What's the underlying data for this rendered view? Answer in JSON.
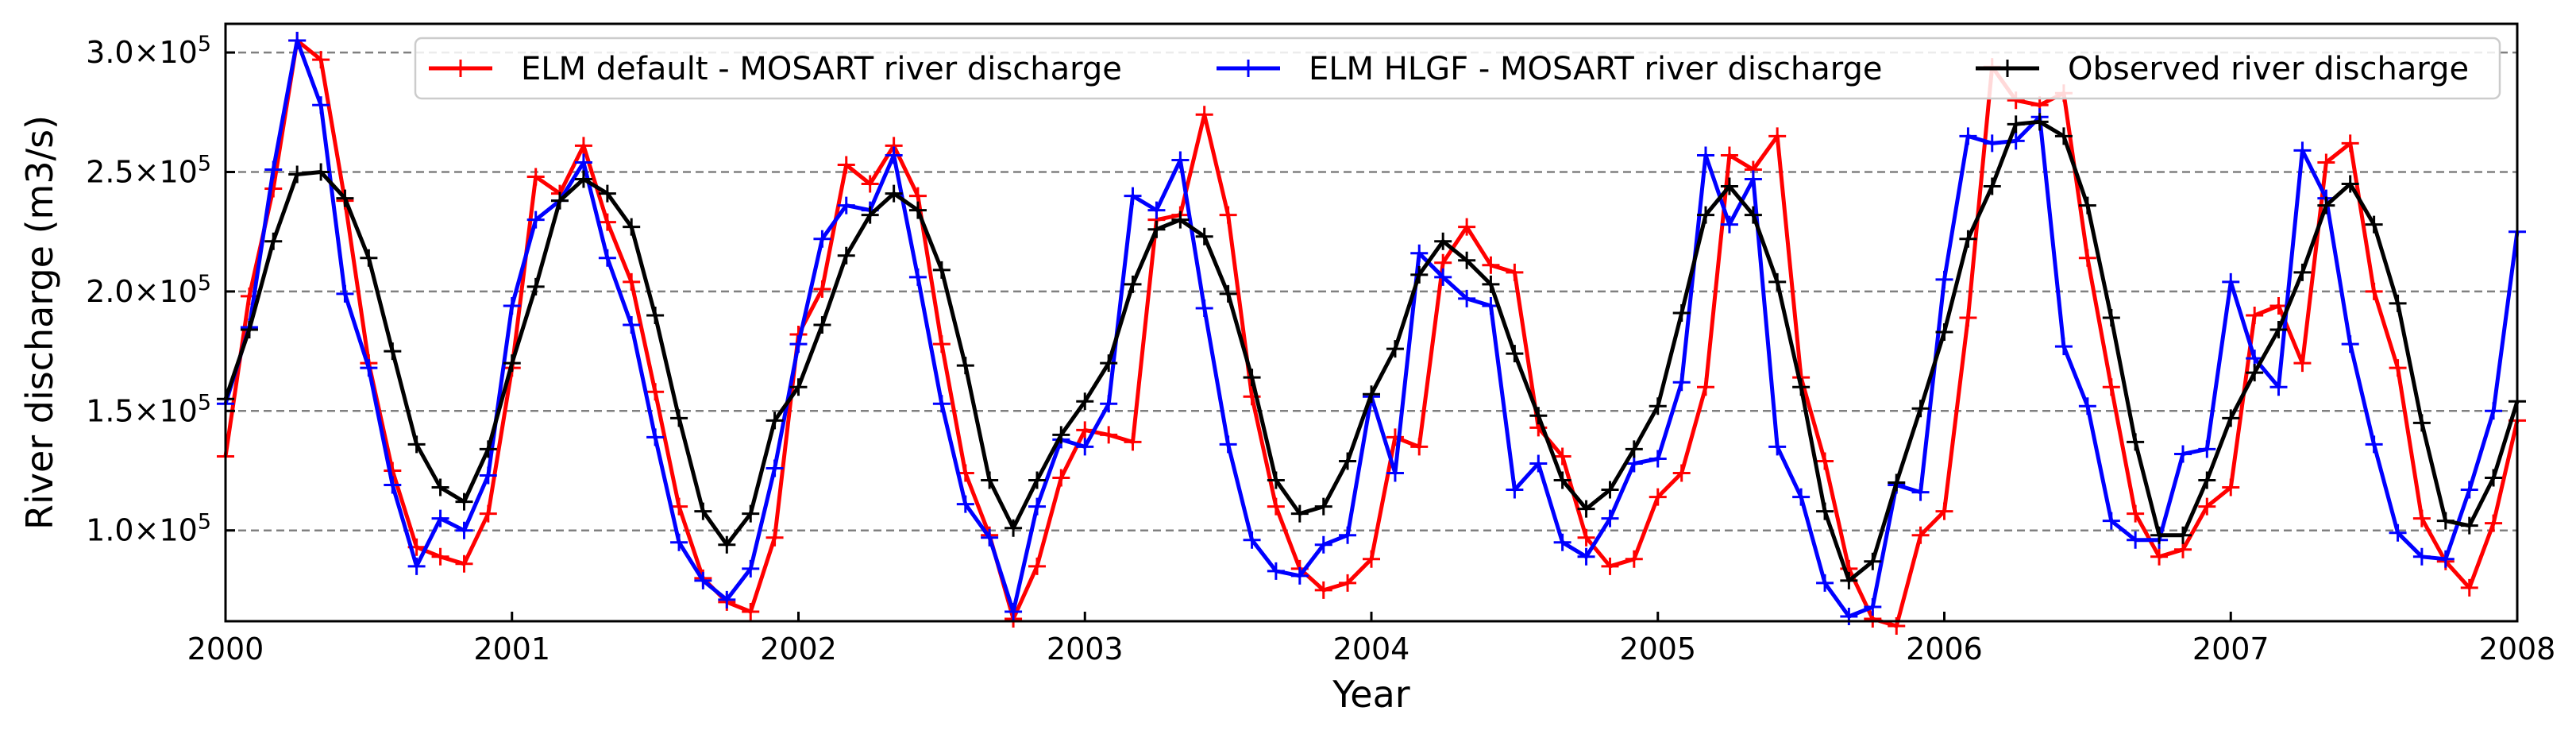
{
  "chart_data": {
    "type": "line",
    "title": "",
    "xlabel": "Year",
    "ylabel": "River discharge (m3/s)",
    "xlim": [
      2000.0,
      2008.0
    ],
    "ylim": [
      62000,
      312000
    ],
    "x_ticks": [
      2000,
      2001,
      2002,
      2003,
      2004,
      2005,
      2006,
      2007,
      2008
    ],
    "x_tick_labels": [
      "2000",
      "2001",
      "2002",
      "2003",
      "2004",
      "2005",
      "2006",
      "2007",
      "2008"
    ],
    "y_ticks": [
      100000,
      150000,
      200000,
      250000,
      300000
    ],
    "y_tick_labels": [
      {
        "mant": "1.0",
        "exp": "5"
      },
      {
        "mant": "1.5",
        "exp": "5"
      },
      {
        "mant": "2.0",
        "exp": "5"
      },
      {
        "mant": "2.5",
        "exp": "5"
      },
      {
        "mant": "3.0",
        "exp": "5"
      }
    ],
    "grid": "horizontal dashed",
    "legend_position": "top-right",
    "marker": "plus",
    "series": [
      {
        "name": "ELM default - MOSART river discharge",
        "color": "#ff0000",
        "x": [
          2000.0,
          2000.083,
          2000.167,
          2000.25,
          2000.333,
          2000.417,
          2000.5,
          2000.583,
          2000.667,
          2000.75,
          2000.833,
          2000.917,
          2001.0,
          2001.083,
          2001.167,
          2001.25,
          2001.333,
          2001.417,
          2001.5,
          2001.583,
          2001.667,
          2001.75,
          2001.833,
          2001.917,
          2002.0,
          2002.083,
          2002.167,
          2002.25,
          2002.333,
          2002.417,
          2002.5,
          2002.583,
          2002.667,
          2002.75,
          2002.833,
          2002.917,
          2003.0,
          2003.083,
          2003.167,
          2003.25,
          2003.333,
          2003.417,
          2003.5,
          2003.583,
          2003.667,
          2003.75,
          2003.833,
          2003.917,
          2004.0,
          2004.083,
          2004.167,
          2004.25,
          2004.333,
          2004.417,
          2004.5,
          2004.583,
          2004.667,
          2004.75,
          2004.833,
          2004.917,
          2005.0,
          2005.083,
          2005.167,
          2005.25,
          2005.333,
          2005.417,
          2005.5,
          2005.583,
          2005.667,
          2005.75,
          2005.833,
          2005.917,
          2006.0,
          2006.083,
          2006.167,
          2006.25,
          2006.333,
          2006.417,
          2006.5,
          2006.583,
          2006.667,
          2006.75,
          2006.833,
          2006.917,
          2007.0,
          2007.083,
          2007.167,
          2007.25,
          2007.333,
          2007.417,
          2007.5,
          2007.583,
          2007.667,
          2007.75,
          2007.833,
          2007.917,
          2008.0
        ],
        "values": [
          131000,
          198000,
          243000,
          305000,
          297000,
          238000,
          170000,
          125000,
          93000,
          89000,
          86000,
          107000,
          168000,
          248000,
          241000,
          261000,
          229000,
          204000,
          158000,
          110000,
          80000,
          70000,
          66000,
          97000,
          182000,
          201000,
          253000,
          245000,
          261000,
          240000,
          178000,
          124000,
          98000,
          63000,
          85000,
          122000,
          142000,
          140000,
          137000,
          230000,
          232000,
          274000,
          232000,
          156000,
          110000,
          84000,
          75000,
          78000,
          88000,
          139000,
          135000,
          212000,
          227000,
          211000,
          208000,
          143000,
          131000,
          97000,
          85000,
          88000,
          114000,
          124000,
          160000,
          257000,
          251000,
          265000,
          164000,
          129000,
          84000,
          63000,
          60000,
          98000,
          108000,
          189000,
          294000,
          280000,
          278000,
          283000,
          214000,
          160000,
          107000,
          89000,
          92000,
          110000,
          118000,
          190000,
          194000,
          170000,
          254000,
          262000,
          200000,
          168000,
          105000,
          87000,
          76000,
          103000,
          146000
        ]
      },
      {
        "name": "ELM HLGF - MOSART river discharge",
        "color": "#0000ff",
        "x": [
          2000.0,
          2000.083,
          2000.167,
          2000.25,
          2000.333,
          2000.417,
          2000.5,
          2000.583,
          2000.667,
          2000.75,
          2000.833,
          2000.917,
          2001.0,
          2001.083,
          2001.167,
          2001.25,
          2001.333,
          2001.417,
          2001.5,
          2001.583,
          2001.667,
          2001.75,
          2001.833,
          2001.917,
          2002.0,
          2002.083,
          2002.167,
          2002.25,
          2002.333,
          2002.417,
          2002.5,
          2002.583,
          2002.667,
          2002.75,
          2002.833,
          2002.917,
          2003.0,
          2003.083,
          2003.167,
          2003.25,
          2003.333,
          2003.417,
          2003.5,
          2003.583,
          2003.667,
          2003.75,
          2003.833,
          2003.917,
          2004.0,
          2004.083,
          2004.167,
          2004.25,
          2004.333,
          2004.417,
          2004.5,
          2004.583,
          2004.667,
          2004.75,
          2004.833,
          2004.917,
          2005.0,
          2005.083,
          2005.167,
          2005.25,
          2005.333,
          2005.417,
          2005.5,
          2005.583,
          2005.667,
          2005.75,
          2005.833,
          2005.917,
          2006.0,
          2006.083,
          2006.167,
          2006.25,
          2006.333,
          2006.417,
          2006.5,
          2006.583,
          2006.667,
          2006.75,
          2006.833,
          2006.917,
          2007.0,
          2007.083,
          2007.167,
          2007.25,
          2007.333,
          2007.417,
          2007.5,
          2007.583,
          2007.667,
          2007.75,
          2007.833,
          2007.917,
          2008.0
        ],
        "values": [
          153000,
          185000,
          251000,
          305000,
          278000,
          199000,
          168000,
          119000,
          85000,
          105000,
          100000,
          123000,
          194000,
          230000,
          238000,
          254000,
          214000,
          186000,
          139000,
          95000,
          79000,
          71000,
          84000,
          126000,
          178000,
          222000,
          236000,
          234000,
          257000,
          206000,
          153000,
          111000,
          97000,
          66000,
          110000,
          138000,
          135000,
          153000,
          240000,
          234000,
          255000,
          193000,
          136000,
          96000,
          83000,
          81000,
          94000,
          98000,
          156000,
          124000,
          216000,
          206000,
          197000,
          194000,
          117000,
          128000,
          95000,
          89000,
          105000,
          128000,
          130000,
          162000,
          257000,
          228000,
          247000,
          135000,
          114000,
          78000,
          64000,
          68000,
          119000,
          116000,
          205000,
          265000,
          262000,
          263000,
          273000,
          177000,
          152000,
          104000,
          96000,
          96000,
          132000,
          134000,
          204000,
          172000,
          160000,
          259000,
          239000,
          178000,
          136000,
          99000,
          89000,
          88000,
          117000,
          150000,
          225000
        ]
      },
      {
        "name": "Observed river discharge",
        "color": "#000000",
        "x": [
          2000.0,
          2000.083,
          2000.167,
          2000.25,
          2000.333,
          2000.417,
          2000.5,
          2000.583,
          2000.667,
          2000.75,
          2000.833,
          2000.917,
          2001.0,
          2001.083,
          2001.167,
          2001.25,
          2001.333,
          2001.417,
          2001.5,
          2001.583,
          2001.667,
          2001.75,
          2001.833,
          2001.917,
          2002.0,
          2002.083,
          2002.167,
          2002.25,
          2002.333,
          2002.417,
          2002.5,
          2002.583,
          2002.667,
          2002.75,
          2002.833,
          2002.917,
          2003.0,
          2003.083,
          2003.167,
          2003.25,
          2003.333,
          2003.417,
          2003.5,
          2003.583,
          2003.667,
          2003.75,
          2003.833,
          2003.917,
          2004.0,
          2004.083,
          2004.167,
          2004.25,
          2004.333,
          2004.417,
          2004.5,
          2004.583,
          2004.667,
          2004.75,
          2004.833,
          2004.917,
          2005.0,
          2005.083,
          2005.167,
          2005.25,
          2005.333,
          2005.417,
          2005.5,
          2005.583,
          2005.667,
          2005.75,
          2005.833,
          2005.917,
          2006.0,
          2006.083,
          2006.167,
          2006.25,
          2006.333,
          2006.417,
          2006.5,
          2006.583,
          2006.667,
          2006.75,
          2006.833,
          2006.917,
          2007.0,
          2007.083,
          2007.167,
          2007.25,
          2007.333,
          2007.417,
          2007.5,
          2007.583,
          2007.667,
          2007.75,
          2007.833,
          2007.917,
          2008.0
        ],
        "values": [
          155000,
          184000,
          221000,
          249000,
          250000,
          239000,
          214000,
          175000,
          136000,
          118000,
          112000,
          134000,
          170000,
          202000,
          238000,
          247000,
          241000,
          227000,
          190000,
          147000,
          108000,
          94000,
          107000,
          146000,
          160000,
          186000,
          215000,
          232000,
          241000,
          234000,
          209000,
          169000,
          121000,
          101000,
          121000,
          140000,
          154000,
          170000,
          203000,
          226000,
          230000,
          223000,
          199000,
          164000,
          121000,
          107000,
          110000,
          129000,
          157000,
          176000,
          207000,
          221000,
          213000,
          203000,
          174000,
          148000,
          121000,
          109000,
          117000,
          134000,
          152000,
          191000,
          232000,
          244000,
          232000,
          204000,
          160000,
          108000,
          79000,
          87000,
          120000,
          151000,
          183000,
          222000,
          244000,
          270000,
          271000,
          265000,
          236000,
          189000,
          137000,
          98000,
          98000,
          121000,
          147000,
          166000,
          184000,
          208000,
          236000,
          245000,
          228000,
          195000,
          145000,
          104000,
          102000,
          122000,
          154000
        ]
      }
    ]
  }
}
